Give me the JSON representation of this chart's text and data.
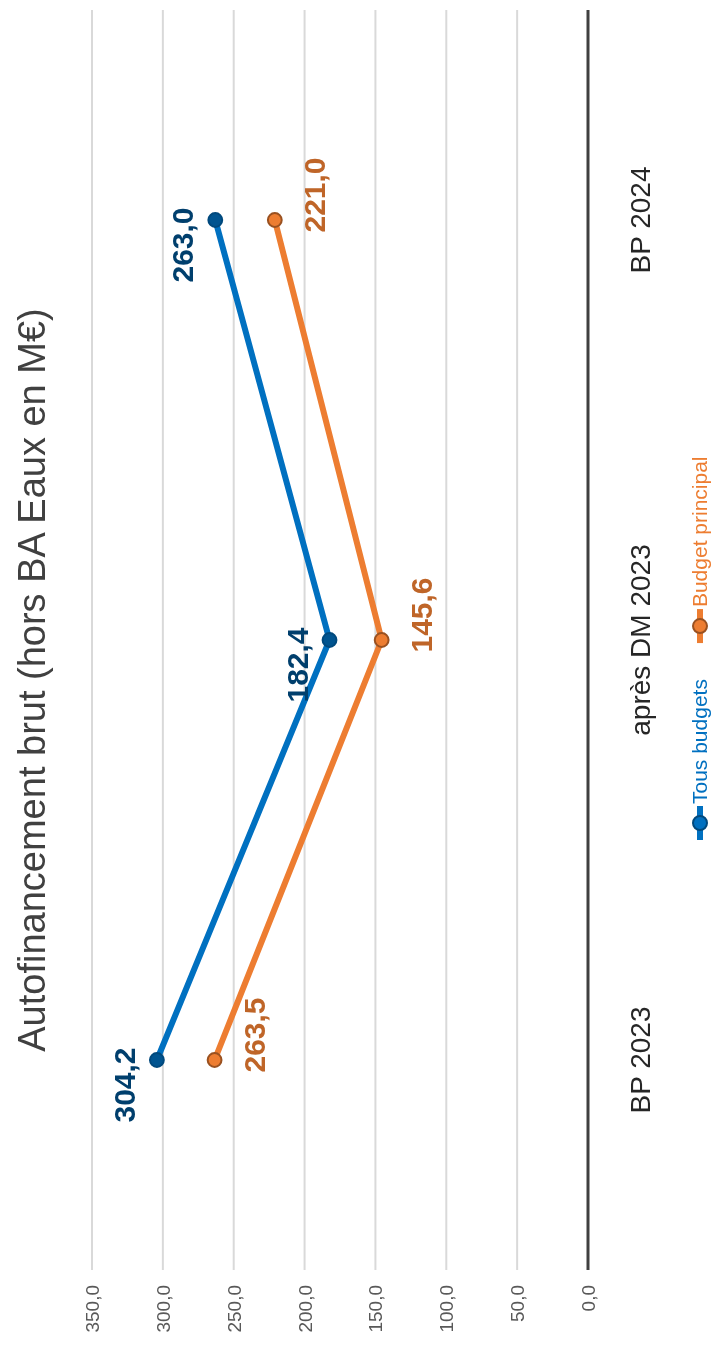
{
  "chart_data": {
    "type": "line",
    "orientation": "horizontal",
    "title": "Autofinancement brut (hors BA Eaux en M€)",
    "categories": [
      "BP 2024",
      "après DM 2023",
      "BP 2023"
    ],
    "series": [
      {
        "name": "Tous budgets",
        "color": "#0070c0",
        "values": [
          263.0,
          182.4,
          304.2
        ],
        "value_labels": [
          "263,0",
          "182,4",
          "304,2"
        ]
      },
      {
        "name": "Budget principal",
        "color": "#ed7d31",
        "values": [
          221.0,
          145.6,
          263.5
        ],
        "value_labels": [
          "221,0",
          "145,6",
          "263,5"
        ]
      }
    ],
    "xlim": [
      350,
      0
    ],
    "xticks": [
      {
        "value": 0,
        "label": "0,0"
      },
      {
        "value": 50,
        "label": "50,0"
      },
      {
        "value": 100,
        "label": "100,0"
      },
      {
        "value": 150,
        "label": "150,0"
      },
      {
        "value": 200,
        "label": "200,0"
      },
      {
        "value": 250,
        "label": "250,0"
      },
      {
        "value": 300,
        "label": "300,0"
      },
      {
        "value": 350,
        "label": "350,0"
      }
    ],
    "grid": "x",
    "legend": "right",
    "marker": "circle",
    "line_style": "solid"
  }
}
